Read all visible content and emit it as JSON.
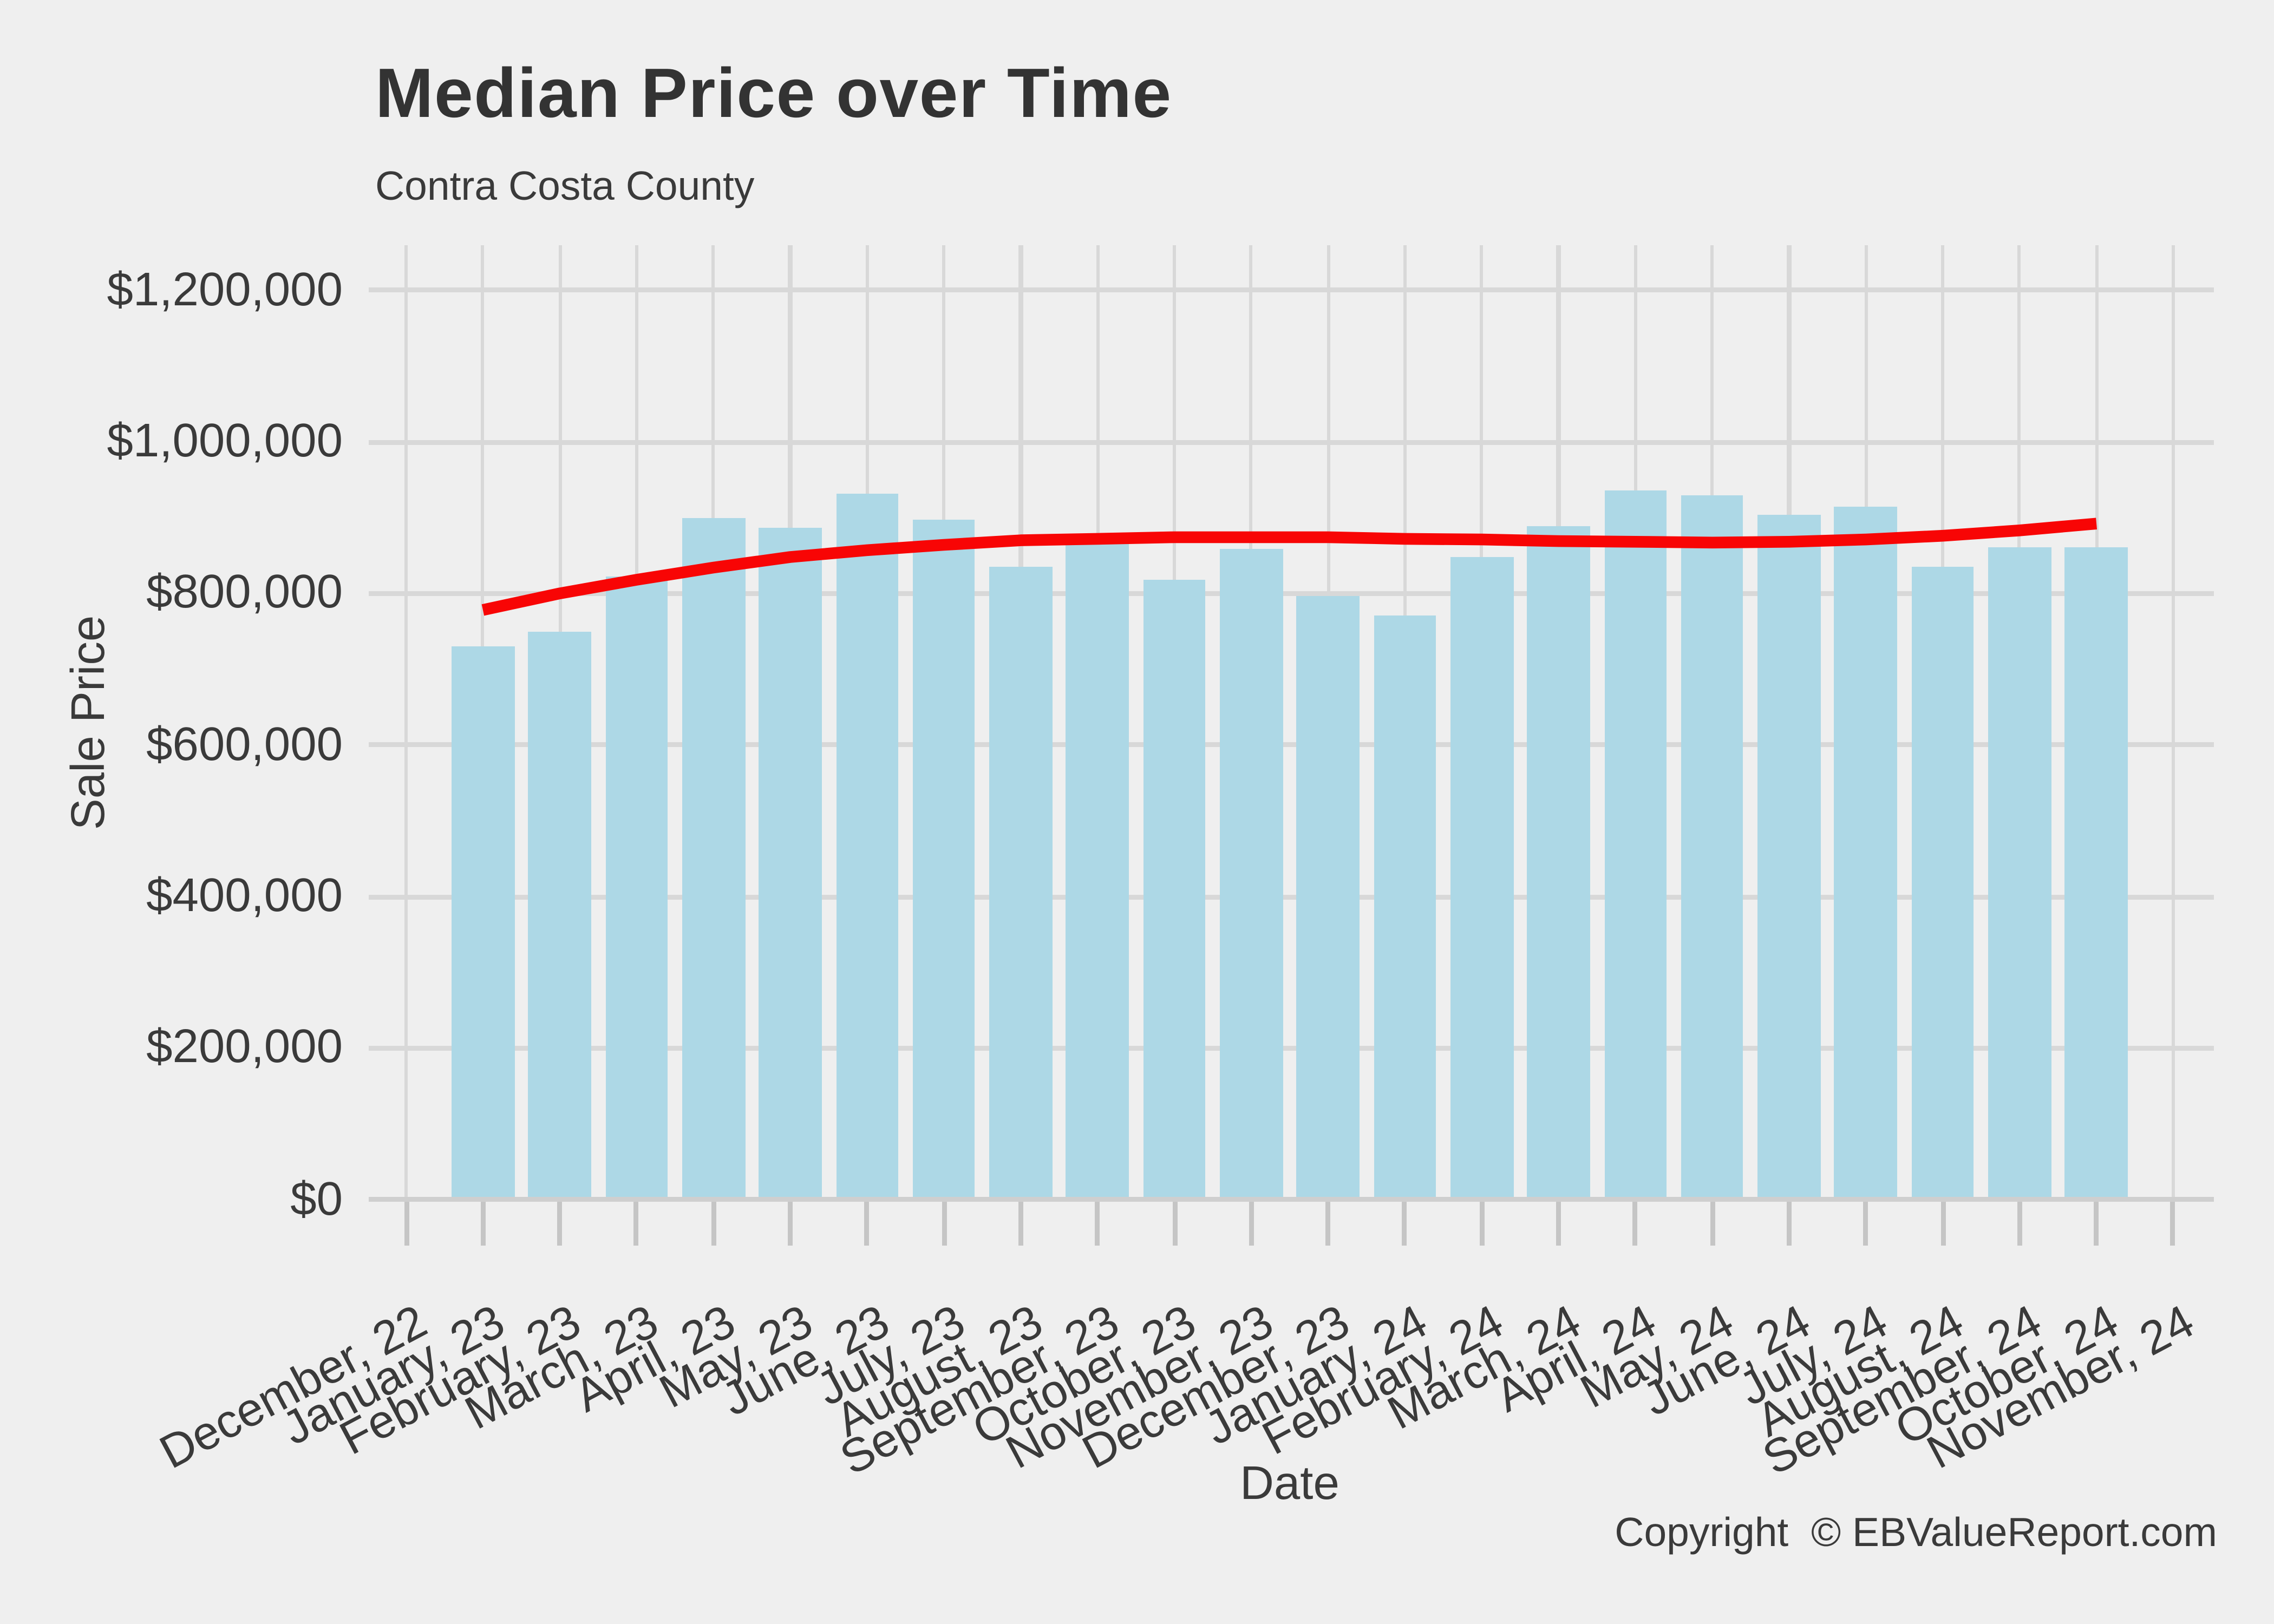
{
  "title": "Median Price over Time",
  "subtitle": "Contra Costa County",
  "caption": "Copyright  © EBValueReport.com",
  "y_axis": {
    "title": "Sale Price",
    "tick_labels": [
      "$0",
      "$200,000",
      "$400,000",
      "$600,000",
      "$800,000",
      "$1,000,000",
      "$1,200,000"
    ],
    "tick_values": [
      0,
      200000,
      400000,
      600000,
      800000,
      1000000,
      1200000
    ]
  },
  "x_axis": {
    "title": "Date",
    "tick_labels": [
      "December, 22",
      "January, 23",
      "February, 23",
      "March, 23",
      "April, 23",
      "May, 23",
      "June, 23",
      "July, 23",
      "August, 23",
      "September, 23",
      "October, 23",
      "November, 23",
      "December, 23",
      "January, 24",
      "February, 24",
      "March, 24",
      "April, 24",
      "May, 24",
      "June, 24",
      "July, 24",
      "August, 24",
      "September, 24",
      "October, 24",
      "November, 24"
    ]
  },
  "colors": {
    "background": "#EFEFEF",
    "bar": "#ADD8E6",
    "trend_line": "#F80505",
    "gridline": "#D8D8D8",
    "axis_line": "#CFCFCF",
    "tick_mark": "#C5C5C5",
    "text": "#3A3A3A",
    "title_text": "#333333"
  },
  "chart_data": {
    "type": "bar",
    "overlay": "smoothed trend line",
    "title": "Median Price over Time",
    "subtitle": "Contra Costa County",
    "xlabel": "Date",
    "ylabel": "Sale Price",
    "ylim": [
      0,
      1260000
    ],
    "grid": "on",
    "legend_position": "none",
    "categories": [
      "December, 22",
      "January, 23",
      "February, 23",
      "March, 23",
      "April, 23",
      "May, 23",
      "June, 23",
      "July, 23",
      "August, 23",
      "September, 23",
      "October, 23",
      "November, 23",
      "December, 23",
      "January, 24",
      "February, 24",
      "March, 24",
      "April, 24",
      "May, 24",
      "June, 24",
      "July, 24",
      "August, 24",
      "September, 24",
      "October, 24",
      "November, 24"
    ],
    "series": [
      {
        "name": "Median Sale Price",
        "type": "bar",
        "values": [
          null,
          730000,
          749000,
          823000,
          899000,
          886000,
          931000,
          898000,
          836000,
          866000,
          818000,
          858000,
          797000,
          771000,
          848000,
          889000,
          936000,
          929000,
          904000,
          915000,
          836000,
          860000,
          860000,
          null
        ]
      },
      {
        "name": "Smoothed trend",
        "type": "line",
        "values": [
          null,
          778000,
          800000,
          818000,
          834000,
          848000,
          857000,
          864000,
          870000,
          872000,
          874000,
          874000,
          874000,
          872000,
          871000,
          869000,
          868000,
          867000,
          868000,
          871000,
          876000,
          883000,
          892000,
          null
        ]
      }
    ]
  }
}
